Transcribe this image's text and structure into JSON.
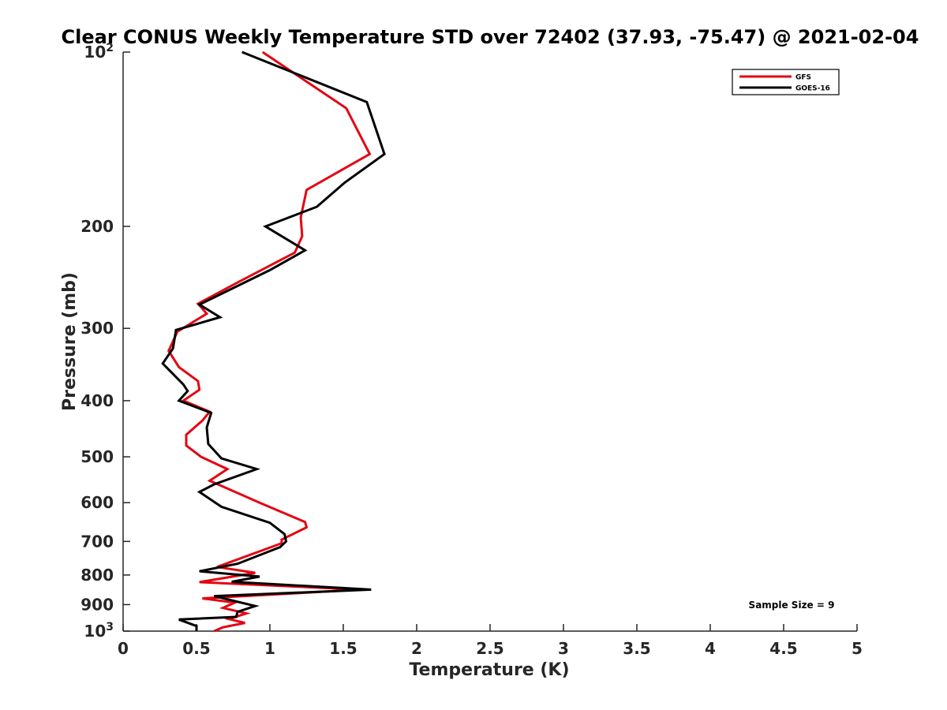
{
  "chart_data": {
    "type": "line",
    "title": "Clear CONUS Weekly Temperature STD over 72402 (37.93, -75.47) @ 2021-02-04",
    "xlabel": "Temperature (K)",
    "ylabel": "Pressure (mb)",
    "xlim": [
      0,
      5
    ],
    "ylim": [
      1000,
      100
    ],
    "yscale": "log",
    "y_reversed": true,
    "grid": false,
    "legend_position": "top-right",
    "annotation": "Sample Size = 9",
    "x_ticks": [
      {
        "value": 0,
        "label": "0"
      },
      {
        "value": 0.5,
        "label": "0.5"
      },
      {
        "value": 1,
        "label": "1"
      },
      {
        "value": 1.5,
        "label": "1.5"
      },
      {
        "value": 2,
        "label": "2"
      },
      {
        "value": 2.5,
        "label": "2.5"
      },
      {
        "value": 3,
        "label": "3"
      },
      {
        "value": 3.5,
        "label": "3.5"
      },
      {
        "value": 4,
        "label": "4"
      },
      {
        "value": 4.5,
        "label": "4.5"
      },
      {
        "value": 5,
        "label": "5"
      }
    ],
    "y_ticks": [
      {
        "value": 100,
        "base": "10",
        "exp": "2"
      },
      {
        "value": 200,
        "label": "200"
      },
      {
        "value": 300,
        "label": "300"
      },
      {
        "value": 400,
        "label": "400"
      },
      {
        "value": 500,
        "label": "500"
      },
      {
        "value": 600,
        "label": "600"
      },
      {
        "value": 700,
        "label": "700"
      },
      {
        "value": 800,
        "label": "800"
      },
      {
        "value": 900,
        "label": "900"
      },
      {
        "value": 1000,
        "base": "10",
        "exp": "3"
      }
    ],
    "series": [
      {
        "name": "GFS",
        "color": "#e30613",
        "points": [
          {
            "x": 0.95,
            "p": 100
          },
          {
            "x": 1.52,
            "p": 125
          },
          {
            "x": 1.68,
            "p": 150
          },
          {
            "x": 1.25,
            "p": 173
          },
          {
            "x": 1.21,
            "p": 193
          },
          {
            "x": 1.22,
            "p": 208
          },
          {
            "x": 1.17,
            "p": 222
          },
          {
            "x": 0.78,
            "p": 250
          },
          {
            "x": 0.51,
            "p": 272
          },
          {
            "x": 0.57,
            "p": 283
          },
          {
            "x": 0.37,
            "p": 304
          },
          {
            "x": 0.31,
            "p": 328
          },
          {
            "x": 0.38,
            "p": 350
          },
          {
            "x": 0.51,
            "p": 370
          },
          {
            "x": 0.52,
            "p": 383
          },
          {
            "x": 0.41,
            "p": 400
          },
          {
            "x": 0.59,
            "p": 418
          },
          {
            "x": 0.54,
            "p": 433
          },
          {
            "x": 0.43,
            "p": 458
          },
          {
            "x": 0.43,
            "p": 478
          },
          {
            "x": 0.53,
            "p": 500
          },
          {
            "x": 0.71,
            "p": 525
          },
          {
            "x": 0.59,
            "p": 550
          },
          {
            "x": 0.93,
            "p": 600
          },
          {
            "x": 1.24,
            "p": 648
          },
          {
            "x": 1.25,
            "p": 662
          },
          {
            "x": 1.08,
            "p": 695
          },
          {
            "x": 1.08,
            "p": 705
          },
          {
            "x": 0.64,
            "p": 775
          },
          {
            "x": 0.9,
            "p": 793
          },
          {
            "x": 0.52,
            "p": 823
          },
          {
            "x": 1.62,
            "p": 848
          },
          {
            "x": 0.54,
            "p": 878
          },
          {
            "x": 0.76,
            "p": 893
          },
          {
            "x": 0.68,
            "p": 912
          },
          {
            "x": 0.84,
            "p": 932
          },
          {
            "x": 0.72,
            "p": 953
          },
          {
            "x": 0.83,
            "p": 968
          },
          {
            "x": 0.68,
            "p": 985
          },
          {
            "x": 0.62,
            "p": 1000
          }
        ]
      },
      {
        "name": "GOES-16",
        "color": "#000000",
        "points": [
          {
            "x": 0.81,
            "p": 100
          },
          {
            "x": 1.66,
            "p": 122
          },
          {
            "x": 1.78,
            "p": 150
          },
          {
            "x": 1.51,
            "p": 168
          },
          {
            "x": 1.32,
            "p": 185
          },
          {
            "x": 0.97,
            "p": 200
          },
          {
            "x": 1.24,
            "p": 220
          },
          {
            "x": 1.0,
            "p": 238
          },
          {
            "x": 0.52,
            "p": 273
          },
          {
            "x": 0.66,
            "p": 287
          },
          {
            "x": 0.36,
            "p": 302
          },
          {
            "x": 0.34,
            "p": 325
          },
          {
            "x": 0.27,
            "p": 345
          },
          {
            "x": 0.41,
            "p": 375
          },
          {
            "x": 0.44,
            "p": 385
          },
          {
            "x": 0.38,
            "p": 400
          },
          {
            "x": 0.6,
            "p": 420
          },
          {
            "x": 0.57,
            "p": 445
          },
          {
            "x": 0.58,
            "p": 475
          },
          {
            "x": 0.67,
            "p": 503
          },
          {
            "x": 0.91,
            "p": 525
          },
          {
            "x": 0.62,
            "p": 558
          },
          {
            "x": 0.52,
            "p": 575
          },
          {
            "x": 0.67,
            "p": 610
          },
          {
            "x": 1.0,
            "p": 650
          },
          {
            "x": 1.1,
            "p": 680
          },
          {
            "x": 1.11,
            "p": 700
          },
          {
            "x": 1.07,
            "p": 716
          },
          {
            "x": 0.78,
            "p": 765
          },
          {
            "x": 0.52,
            "p": 788
          },
          {
            "x": 0.93,
            "p": 805
          },
          {
            "x": 0.74,
            "p": 822
          },
          {
            "x": 1.69,
            "p": 848
          },
          {
            "x": 0.62,
            "p": 870
          },
          {
            "x": 0.9,
            "p": 905
          },
          {
            "x": 0.78,
            "p": 926
          },
          {
            "x": 0.77,
            "p": 945
          },
          {
            "x": 0.38,
            "p": 955
          },
          {
            "x": 0.5,
            "p": 980
          },
          {
            "x": 0.5,
            "p": 1000
          }
        ]
      }
    ]
  }
}
